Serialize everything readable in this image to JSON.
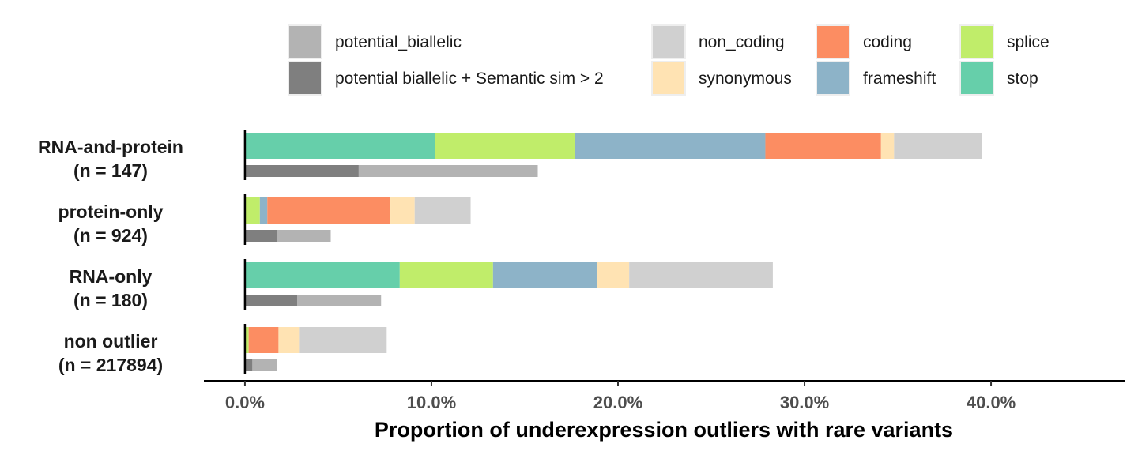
{
  "chart_data": {
    "type": "bar",
    "orientation": "horizontal",
    "stacked": true,
    "xlabel": "Proportion of underexpression outliers with rare variants",
    "xlim": [
      -0.022,
      0.472
    ],
    "xticks": [
      0.0,
      0.1,
      0.2,
      0.3,
      0.4
    ],
    "xtick_labels": [
      "0.0%",
      "10.0%",
      "20.0%",
      "30.0%",
      "40.0%"
    ],
    "grid": false,
    "legend_position": "top",
    "categories": [
      {
        "label": "RNA-and-protein",
        "n_label": "(n = 147)"
      },
      {
        "label": "protein-only",
        "n_label": "(n = 924)"
      },
      {
        "label": "RNA-only",
        "n_label": "(n = 180)"
      },
      {
        "label": "non outlier",
        "n_label": "(n = 217894)"
      }
    ],
    "legend": [
      {
        "key": "potential_biallelic",
        "label": "potential_biallelic",
        "color": "#b3b3b3"
      },
      {
        "key": "biallelic_sim",
        "label": "potential biallelic + Semantic sim > 2",
        "color": "#7f7f7f"
      },
      {
        "key": "non_coding",
        "label": "non_coding",
        "color": "#d0d0d0"
      },
      {
        "key": "synonymous",
        "label": "synonymous",
        "color": "#ffe3b3"
      },
      {
        "key": "coding",
        "label": "coding",
        "color": "#fc8d62"
      },
      {
        "key": "frameshift",
        "label": "frameshift",
        "color": "#8db3c8"
      },
      {
        "key": "splice",
        "label": "splice",
        "color": "#c0ed6a"
      },
      {
        "key": "stop",
        "label": "stop",
        "color": "#66cfaa"
      }
    ],
    "variant_series_order": [
      "stop",
      "splice",
      "frameshift",
      "coding",
      "synonymous",
      "non_coding"
    ],
    "variant_series": [
      {
        "key": "stop",
        "values": [
          0.102,
          0.0,
          0.083,
          0.0
        ]
      },
      {
        "key": "splice",
        "values": [
          0.075,
          0.008,
          0.05,
          0.002
        ]
      },
      {
        "key": "frameshift",
        "values": [
          0.102,
          0.004,
          0.056,
          0.0
        ]
      },
      {
        "key": "coding",
        "values": [
          0.062,
          0.066,
          0.0,
          0.016
        ]
      },
      {
        "key": "synonymous",
        "values": [
          0.007,
          0.013,
          0.017,
          0.011
        ]
      },
      {
        "key": "non_coding",
        "values": [
          0.047,
          0.03,
          0.077,
          0.047
        ]
      }
    ],
    "biallelic_series_order": [
      "biallelic_sim",
      "potential_biallelic"
    ],
    "biallelic_series": [
      {
        "key": "biallelic_sim",
        "values": [
          0.061,
          0.017,
          0.028,
          0.004
        ]
      },
      {
        "key": "potential_biallelic",
        "values": [
          0.096,
          0.029,
          0.045,
          0.013
        ]
      }
    ]
  }
}
